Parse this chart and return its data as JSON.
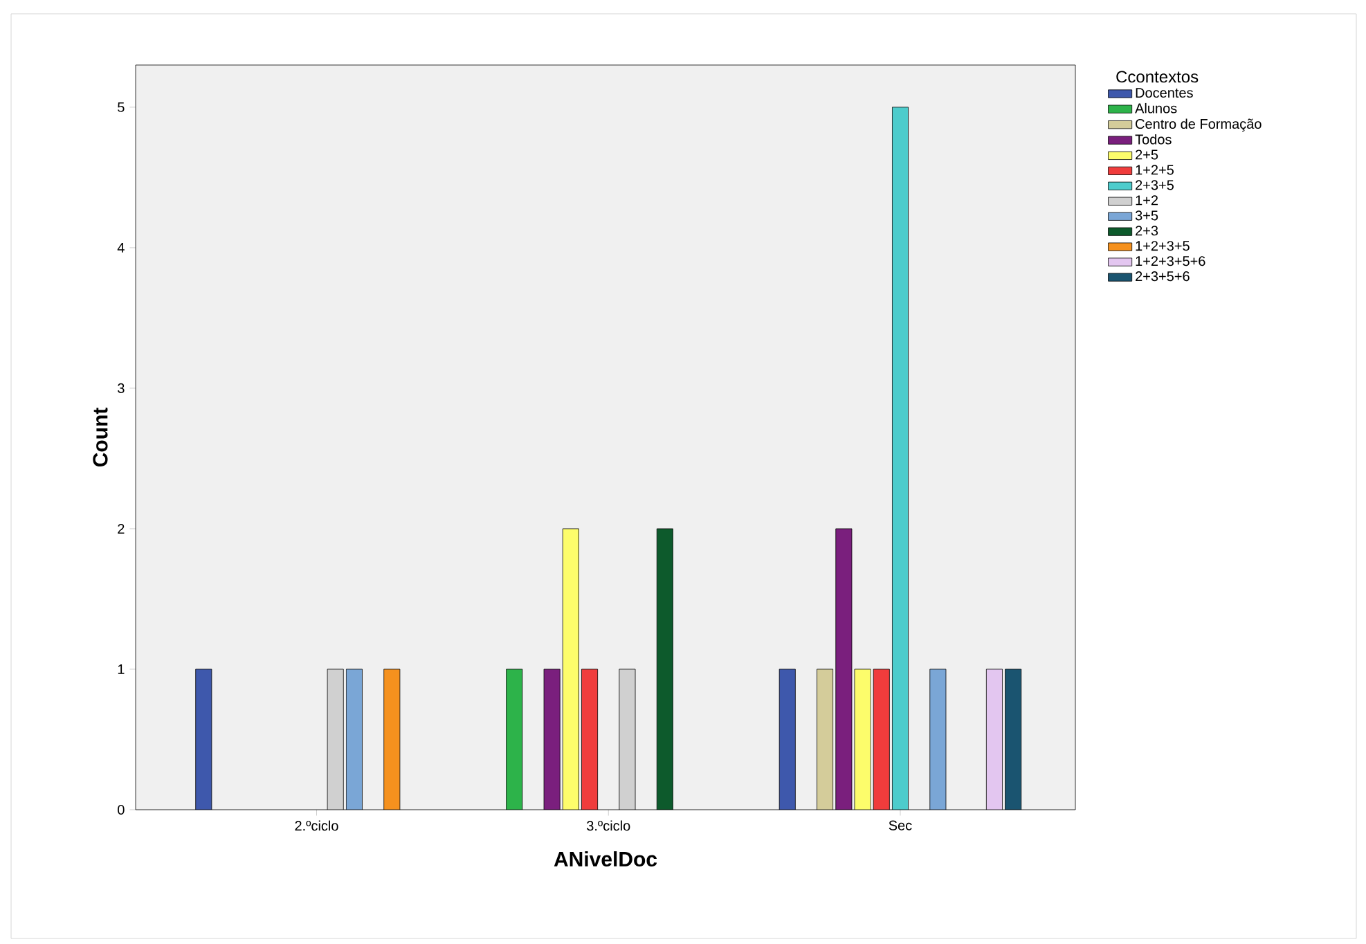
{
  "chart_data": {
    "type": "bar",
    "xlabel": "ANivelDoc",
    "ylabel": "Count",
    "legend_title": "Ccontextos",
    "legend": "right",
    "categories": [
      "2.ºciclo",
      "3.ºciclo",
      "Sec"
    ],
    "ylim": [
      0,
      5.3
    ],
    "yticks": [
      0,
      1,
      2,
      3,
      4,
      5
    ],
    "series": [
      {
        "name": "Docentes",
        "color": "#3e58ac",
        "values": [
          1,
          null,
          1
        ]
      },
      {
        "name": "Alunos",
        "color": "#2db34a",
        "values": [
          null,
          1,
          null
        ]
      },
      {
        "name": "Centro de Formação",
        "color": "#d4cc9a",
        "values": [
          null,
          null,
          1
        ]
      },
      {
        "name": "Todos",
        "color": "#7a1f7d",
        "values": [
          null,
          1,
          2
        ]
      },
      {
        "name": "2+5",
        "color": "#fdfd6b",
        "values": [
          null,
          2,
          1
        ]
      },
      {
        "name": "1+2+5",
        "color": "#f03c3c",
        "values": [
          null,
          1,
          1
        ]
      },
      {
        "name": "2+3+5",
        "color": "#4dcccc",
        "values": [
          null,
          null,
          5
        ]
      },
      {
        "name": "1+2",
        "color": "#d0d0d0",
        "values": [
          1,
          1,
          null
        ]
      },
      {
        "name": "3+5",
        "color": "#7aa6d6",
        "values": [
          1,
          null,
          1
        ]
      },
      {
        "name": "2+3",
        "color": "#0d5a2c",
        "values": [
          null,
          2,
          null
        ]
      },
      {
        "name": "1+2+3+5",
        "color": "#f5911e",
        "values": [
          1,
          null,
          null
        ]
      },
      {
        "name": "1+2+3+5+6",
        "color": "#e3c6f0",
        "values": [
          null,
          null,
          1
        ]
      },
      {
        "name": "2+3+5+6",
        "color": "#1a5470",
        "values": [
          null,
          null,
          1
        ]
      }
    ]
  }
}
